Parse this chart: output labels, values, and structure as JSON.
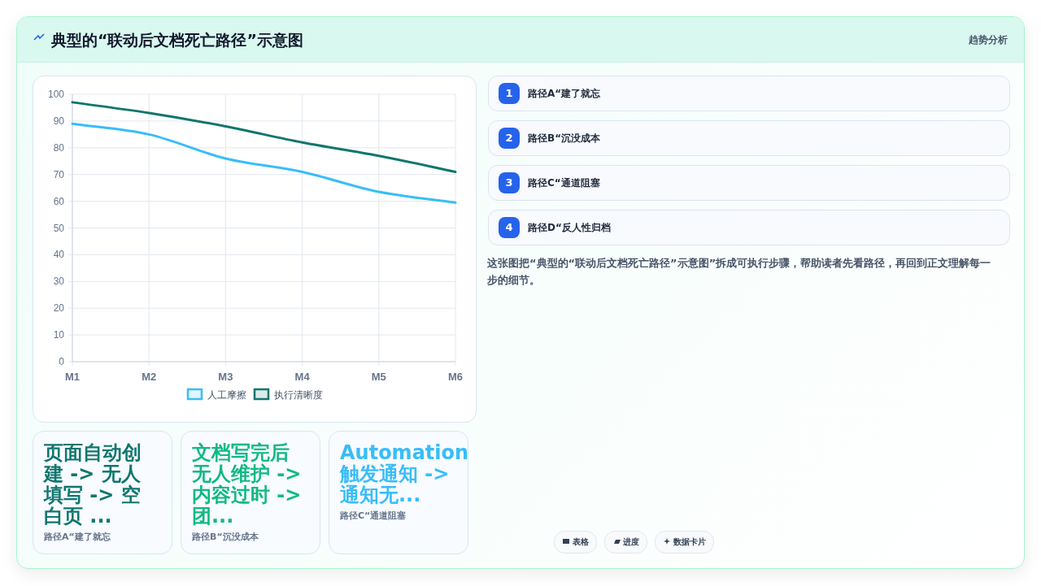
{
  "chart_data": {
    "type": "line",
    "title": "典型的“联动后文档死亡路径”示意图",
    "subtitle": "趋势分析",
    "categories": [
      "M1",
      "M2",
      "M3",
      "M4",
      "M5",
      "M6"
    ],
    "series": [
      {
        "name": "人工摩擦",
        "color": "#38bdf8",
        "values": [
          89,
          85,
          76,
          71,
          63.5,
          59.5
        ]
      },
      {
        "name": "执行清晰度",
        "color": "#0f766e",
        "values": [
          97,
          93,
          88,
          82,
          77,
          71
        ]
      }
    ],
    "ylim": [
      0,
      100
    ],
    "yticks": [
      0,
      10,
      20,
      30,
      40,
      50,
      60,
      70,
      80,
      90,
      100
    ],
    "grid": true,
    "legend": "bottom",
    "marker": "none",
    "line_style": "solid",
    "annotations": [
      "1",
      "路径A“建了就忘",
      "2",
      "路径B“沉没成本",
      "3",
      "路径C“通道阻塞",
      "4",
      "路径D“反人性归档",
      "这张图把“典型的“联动后文档死亡路径”示意图”拆成可执行步骤，帮助读者先看路径，再回到正文理解每一步的细节。",
      "页面自动创建 -> 无人填写 -> 空白页 ...",
      "路径A“建了就忘",
      "文档写完后无人维护 -> 内容过时 -> 团...",
      "路径B“沉没成本",
      "Automation 触发通知 -> 通知无...",
      "路径C“通道阻塞",
      "表格",
      "进度",
      "数据卡片"
    ]
  }
}
